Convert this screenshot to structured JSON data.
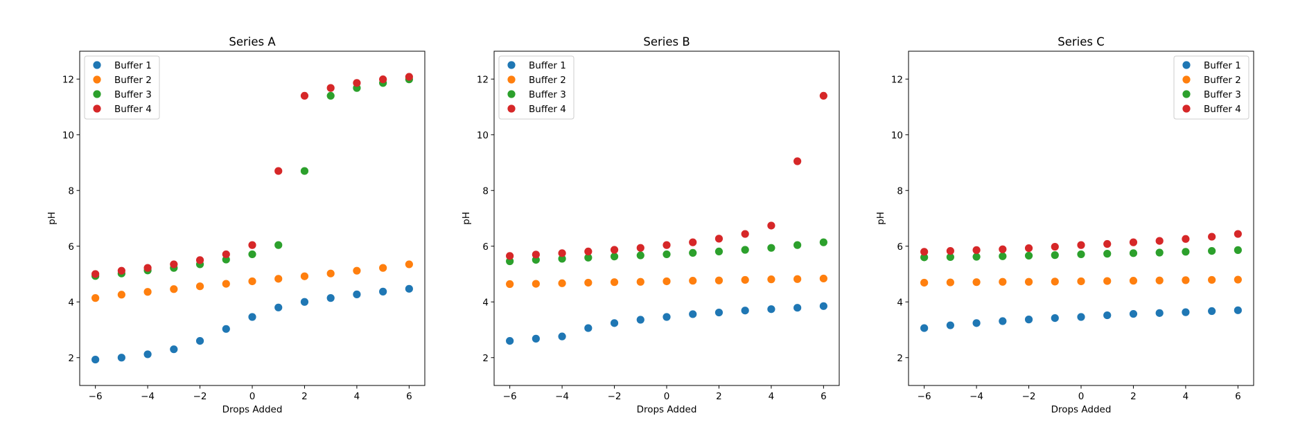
{
  "chart_data": [
    {
      "type": "scatter",
      "title": "Series A",
      "xlabel": "Drops Added",
      "ylabel": "pH",
      "xlim": [
        -6.6,
        6.6
      ],
      "ylim": [
        1.0,
        13.0
      ],
      "xticks": [
        -6,
        -4,
        -2,
        0,
        2,
        4,
        6
      ],
      "yticks": [
        2,
        4,
        6,
        8,
        10,
        12
      ],
      "xtick_labels": [
        "−6",
        "−4",
        "−2",
        "0",
        "2",
        "4",
        "6"
      ],
      "ytick_labels": [
        "2",
        "4",
        "6",
        "8",
        "10",
        "12"
      ],
      "legend_position": "upper left",
      "grid": false,
      "x": [
        -6,
        -5,
        -4,
        -3,
        -2,
        -1,
        0,
        1,
        2,
        3,
        4,
        5,
        6
      ],
      "series": [
        {
          "name": "Buffer 1",
          "color": "#1f77b4",
          "values": [
            1.93,
            2.0,
            2.12,
            2.3,
            2.6,
            3.03,
            3.46,
            3.8,
            4.0,
            4.14,
            4.27,
            4.37,
            4.47
          ]
        },
        {
          "name": "Buffer 2",
          "color": "#ff7f0e",
          "values": [
            4.14,
            4.26,
            4.36,
            4.46,
            4.56,
            4.65,
            4.74,
            4.83,
            4.92,
            5.02,
            5.12,
            5.22,
            5.35
          ]
        },
        {
          "name": "Buffer 3",
          "color": "#2ca02c",
          "values": [
            4.93,
            5.02,
            5.13,
            5.22,
            5.35,
            5.52,
            5.71,
            6.04,
            8.7,
            11.4,
            11.68,
            11.86,
            11.99
          ]
        },
        {
          "name": "Buffer 4",
          "color": "#d62728",
          "values": [
            5.0,
            5.12,
            5.22,
            5.35,
            5.5,
            5.71,
            6.04,
            8.7,
            11.4,
            11.68,
            11.86,
            11.99,
            12.08
          ]
        }
      ]
    },
    {
      "type": "scatter",
      "title": "Series B",
      "xlabel": "Drops Added",
      "ylabel": "pH",
      "xlim": [
        -6.6,
        6.6
      ],
      "ylim": [
        1.0,
        13.0
      ],
      "xticks": [
        -6,
        -4,
        -2,
        0,
        2,
        4,
        6
      ],
      "yticks": [
        2,
        4,
        6,
        8,
        10,
        12
      ],
      "xtick_labels": [
        "−6",
        "−4",
        "−2",
        "0",
        "2",
        "4",
        "6"
      ],
      "ytick_labels": [
        "2",
        "4",
        "6",
        "8",
        "10",
        "12"
      ],
      "legend_position": "upper left",
      "grid": false,
      "x": [
        -6,
        -5,
        -4,
        -3,
        -2,
        -1,
        0,
        1,
        2,
        3,
        4,
        5,
        6
      ],
      "series": [
        {
          "name": "Buffer 1",
          "color": "#1f77b4",
          "values": [
            2.6,
            2.68,
            2.76,
            3.06,
            3.24,
            3.36,
            3.46,
            3.56,
            3.62,
            3.69,
            3.74,
            3.79,
            3.85
          ]
        },
        {
          "name": "Buffer 2",
          "color": "#ff7f0e",
          "values": [
            4.64,
            4.65,
            4.67,
            4.69,
            4.71,
            4.72,
            4.74,
            4.76,
            4.77,
            4.79,
            4.81,
            4.82,
            4.84
          ]
        },
        {
          "name": "Buffer 3",
          "color": "#2ca02c",
          "values": [
            5.46,
            5.51,
            5.55,
            5.59,
            5.63,
            5.67,
            5.71,
            5.76,
            5.81,
            5.87,
            5.94,
            6.04,
            6.14
          ]
        },
        {
          "name": "Buffer 4",
          "color": "#d62728",
          "values": [
            5.65,
            5.7,
            5.75,
            5.81,
            5.87,
            5.94,
            6.04,
            6.14,
            6.27,
            6.44,
            6.74,
            9.05,
            11.4
          ]
        }
      ]
    },
    {
      "type": "scatter",
      "title": "Series C",
      "xlabel": "Drops Added",
      "ylabel": "pH",
      "xlim": [
        -6.6,
        6.6
      ],
      "ylim": [
        1.0,
        13.0
      ],
      "xticks": [
        -6,
        -4,
        -2,
        0,
        2,
        4,
        6
      ],
      "yticks": [
        2,
        4,
        6,
        8,
        10,
        12
      ],
      "xtick_labels": [
        "−6",
        "−4",
        "−2",
        "0",
        "2",
        "4",
        "6"
      ],
      "ytick_labels": [
        "2",
        "4",
        "6",
        "8",
        "10",
        "12"
      ],
      "legend_position": "upper right",
      "grid": false,
      "x": [
        -6,
        -5,
        -4,
        -3,
        -2,
        -1,
        0,
        1,
        2,
        3,
        4,
        5,
        6
      ],
      "series": [
        {
          "name": "Buffer 1",
          "color": "#1f77b4",
          "values": [
            3.06,
            3.16,
            3.24,
            3.31,
            3.37,
            3.42,
            3.46,
            3.52,
            3.57,
            3.6,
            3.63,
            3.67,
            3.7
          ]
        },
        {
          "name": "Buffer 2",
          "color": "#ff7f0e",
          "values": [
            4.69,
            4.7,
            4.71,
            4.72,
            4.72,
            4.73,
            4.74,
            4.75,
            4.76,
            4.77,
            4.78,
            4.79,
            4.8
          ]
        },
        {
          "name": "Buffer 3",
          "color": "#2ca02c",
          "values": [
            5.6,
            5.61,
            5.62,
            5.64,
            5.66,
            5.68,
            5.71,
            5.73,
            5.75,
            5.77,
            5.8,
            5.83,
            5.86
          ]
        },
        {
          "name": "Buffer 4",
          "color": "#d62728",
          "values": [
            5.8,
            5.83,
            5.86,
            5.89,
            5.93,
            5.98,
            6.04,
            6.08,
            6.14,
            6.19,
            6.26,
            6.34,
            6.44
          ]
        }
      ]
    }
  ]
}
